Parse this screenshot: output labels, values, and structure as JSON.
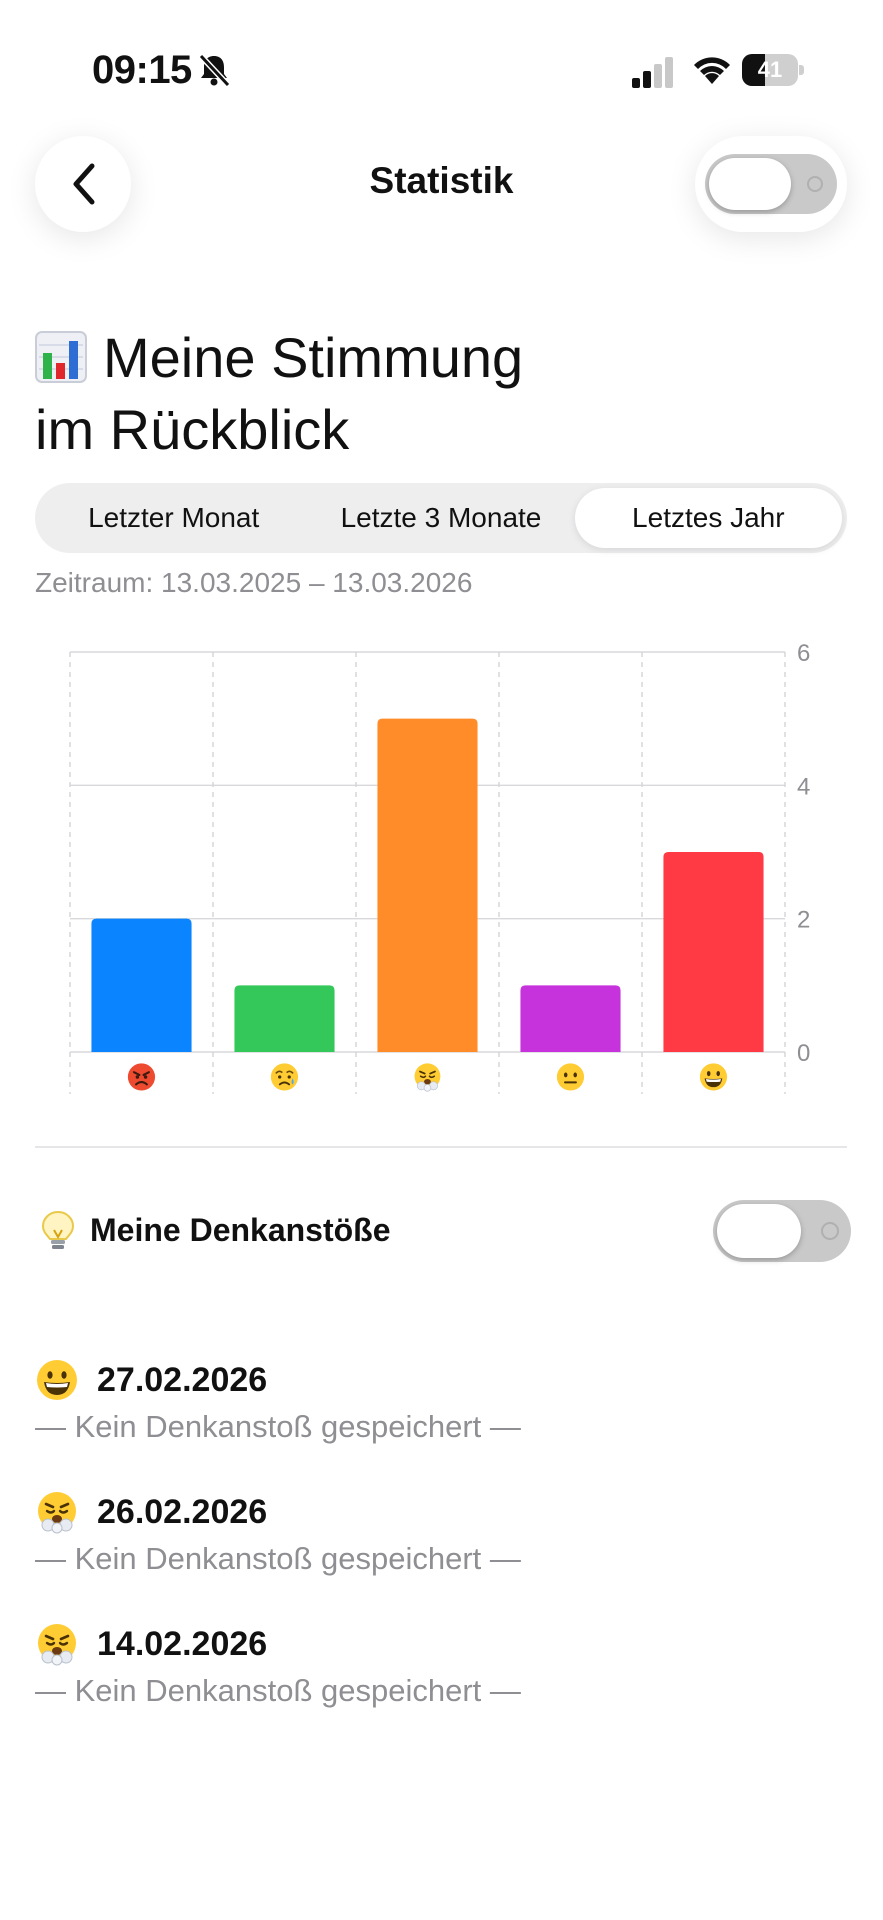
{
  "status_bar": {
    "time": "09:15",
    "battery": "41",
    "battery_level": 0.41
  },
  "nav": {
    "title": "Statistik",
    "toggle_on": false
  },
  "headline": {
    "line1": "Meine Stimmung",
    "line2": "im Rückblick",
    "icon": "bar-chart-emoji"
  },
  "segments": [
    {
      "label": "Letzter Monat",
      "active": false
    },
    {
      "label": "Letzte 3 Monate",
      "active": false
    },
    {
      "label": "Letztes Jahr",
      "active": true
    }
  ],
  "range": "Zeitraum: 13.03.2025 – 13.03.2026",
  "chart_data": {
    "type": "bar",
    "categories": [
      "angry",
      "sad-sweat",
      "huffing",
      "neutral",
      "grinning"
    ],
    "values": [
      2,
      1,
      5,
      1,
      3
    ],
    "colors": [
      "#0A84FF",
      "#34C759",
      "#FF8C28",
      "#C633DC",
      "#FF3A44"
    ],
    "yticks": [
      "0",
      "2",
      "4",
      "6"
    ],
    "ylim": [
      0,
      6
    ],
    "grid": true,
    "yaxis_position": "right"
  },
  "section": {
    "title": "Meine Denkanstöße",
    "icon": "lightbulb-emoji",
    "toggle_on": false
  },
  "entries": [
    {
      "mood": "grinning",
      "date": "27.02.2026",
      "note": "— Kein Denkanstoß gespeichert —"
    },
    {
      "mood": "huffing",
      "date": "26.02.2026",
      "note": "— Kein Denkanstoß gespeichert —"
    },
    {
      "mood": "huffing",
      "date": "14.02.2026",
      "note": "— Kein Denkanstoß gespeichert —"
    }
  ]
}
